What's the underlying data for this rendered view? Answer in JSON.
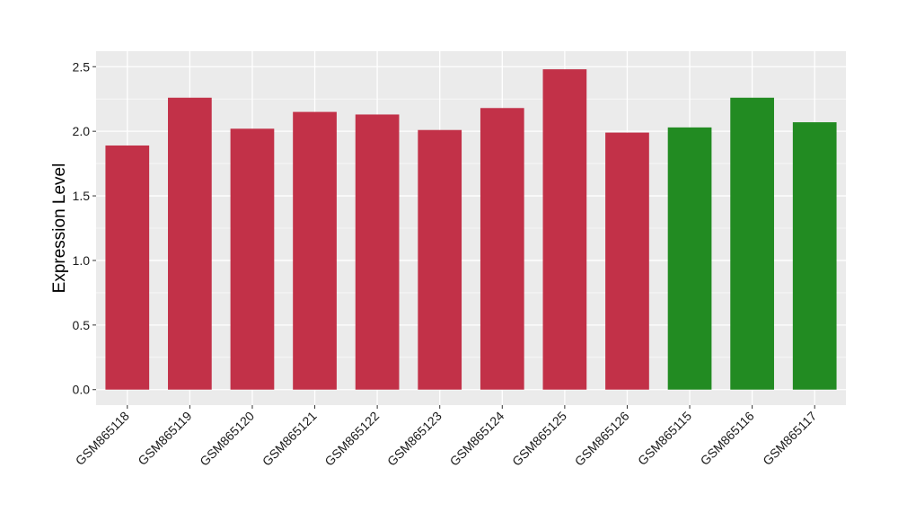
{
  "chart_data": {
    "type": "bar",
    "title": "",
    "xlabel": "",
    "ylabel": "Expression Level",
    "ylim": [
      -0.12,
      2.62
    ],
    "yticks": [
      0.0,
      0.5,
      1.0,
      1.5,
      2.0,
      2.5
    ],
    "ytick_labels": [
      "0.0",
      "0.5",
      "1.0",
      "1.5",
      "2.0",
      "2.5"
    ],
    "grid": true,
    "legend": "none",
    "panel_background": "#ebebeb",
    "grid_color": "#ffffff",
    "categories": [
      "GSM865118",
      "GSM865119",
      "GSM865120",
      "GSM865121",
      "GSM865122",
      "GSM865123",
      "GSM865124",
      "GSM865125",
      "GSM865126",
      "GSM865115",
      "GSM865116",
      "GSM865117"
    ],
    "values": [
      1.89,
      2.26,
      2.02,
      2.15,
      2.13,
      2.01,
      2.18,
      2.48,
      1.99,
      2.03,
      2.26,
      2.07
    ],
    "bar_colors": [
      "#c23148",
      "#c23148",
      "#c23148",
      "#c23148",
      "#c23148",
      "#c23148",
      "#c23148",
      "#c23148",
      "#c23148",
      "#228b22",
      "#228b22",
      "#228b22"
    ]
  }
}
